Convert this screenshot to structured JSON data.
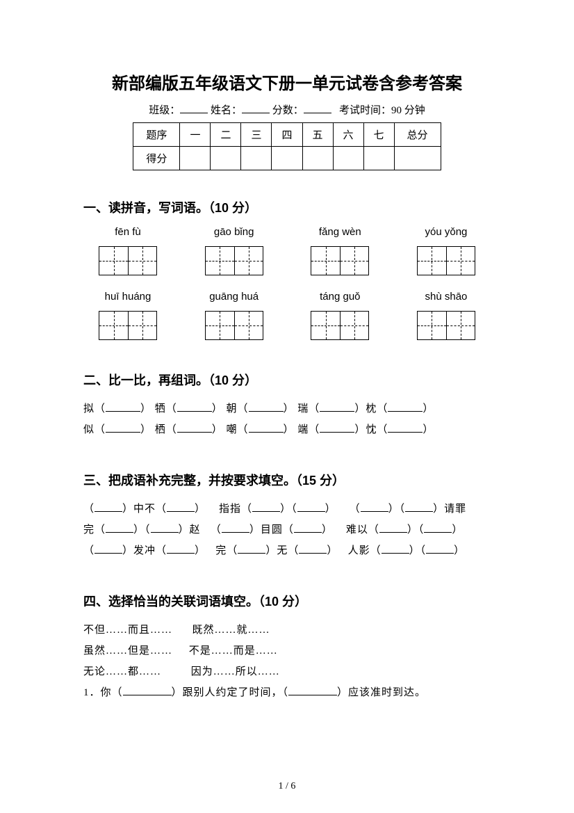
{
  "title": "新部编版五年级语文下册一单元试卷含参考答案",
  "meta": {
    "class_label": "班级：",
    "name_label": "姓名：",
    "score_label": "分数：",
    "exam_time": "考试时间：90 分钟"
  },
  "score_table": {
    "row1": [
      "题序",
      "一",
      "二",
      "三",
      "四",
      "五",
      "六",
      "七",
      "总分"
    ],
    "row2_label": "得分"
  },
  "sections": {
    "s1": {
      "heading": "一、读拼音，写词语。（10 分）",
      "row1": [
        "fēn fù",
        "gāo bǐng",
        "fǎng wèn",
        "yóu yǒng"
      ],
      "row2": [
        "huī huáng",
        "guāng huá",
        "táng guǒ",
        "shù shāo"
      ]
    },
    "s2": {
      "heading": "二、比一比，再组词。（10 分）",
      "line1_chars": [
        "拟（",
        "） 牺（",
        "） 朝（",
        "） 瑞（",
        "）枕（",
        "）"
      ],
      "line2_chars": [
        "似（",
        "） 栖（",
        "） 嘲（",
        "） 端（",
        "）忱（",
        "）"
      ]
    },
    "s3": {
      "heading": "三、把成语补充完整，并按要求填空。（15 分）",
      "line1": [
        "（",
        "）中不（",
        "）",
        "指指（",
        "）（",
        "）",
        "（",
        "）（",
        "）请罪"
      ],
      "line2": [
        "完（",
        "）（",
        "）赵",
        "（",
        "）目圆（",
        "）",
        "难以（",
        "）（",
        "）"
      ],
      "line3": [
        "（",
        "）发冲（",
        "）",
        "完（",
        "）无（",
        "）",
        "人影（",
        "）（",
        "）"
      ]
    },
    "s4": {
      "heading": "四、选择恰当的关联词语填空。（10 分）",
      "pair1a": "不但……而且……",
      "pair1b": "既然……就……",
      "pair2a": "虽然……但是……",
      "pair2b": "不是……而是……",
      "pair3a": "无论……都……",
      "pair3b": "因为……所以……",
      "q1_pre": "1．你（",
      "q1_mid": "）跟别人约定了时间，（",
      "q1_end": "）应该准时到达。"
    }
  },
  "page_num": "1 / 6"
}
